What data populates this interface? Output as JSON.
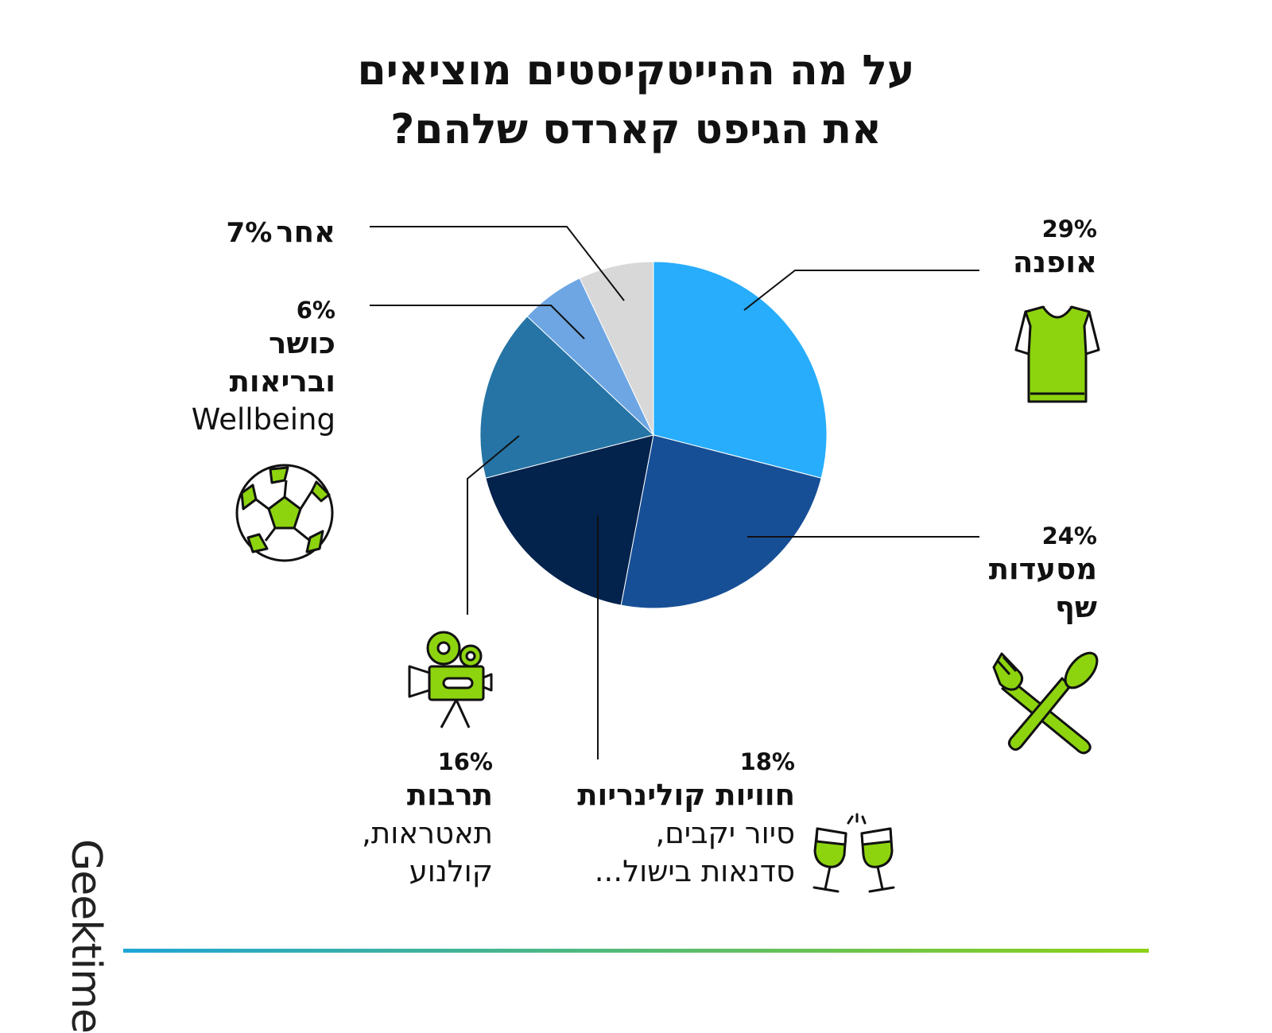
{
  "title_line1": "על מה ההייטקיסטים מוציאים",
  "title_line2": "את הגיפט קארדס שלהם?",
  "brand": "Geektime",
  "labels": {
    "fashion": {
      "pct": "29%",
      "name": "אופנה"
    },
    "restaurants": {
      "pct": "24%",
      "name1": "מסעדות",
      "name2": "שף"
    },
    "culinary": {
      "pct": "18%",
      "name": "חוויות קולינריות",
      "sub1": "סיור יקבים,",
      "sub2": "סדנאות בישול..."
    },
    "culture": {
      "pct": "16%",
      "name": "תרבות",
      "sub1": "תאטראות,",
      "sub2": "קולנוע"
    },
    "wellbeing": {
      "pct": "6%",
      "name1": "כושר",
      "name2": "ובריאות",
      "sub": "Wellbeing"
    },
    "other": {
      "pct": "7%",
      "name": "אחר"
    }
  },
  "icons": {
    "fashion": "t-shirt-icon",
    "restaurants": "fork-spoon-icon",
    "culinary": "wine-glasses-icon",
    "culture": "film-camera-icon",
    "wellbeing": "soccer-ball-icon"
  },
  "colors": {
    "fashion": "#27adfb",
    "restaurants": "#174f96",
    "culinary": "#03224c",
    "culture": "#2574a5",
    "wellbeing": "#6ea6e4",
    "other": "#d8d8d8",
    "icon_green": "#8dd40f"
  },
  "chart_data": {
    "type": "pie",
    "title": "על מה ההייטקיסטים מוציאים את הגיפט קארדס שלהם?",
    "categories": [
      "אופנה",
      "מסעדות שף",
      "חוויות קולינריות",
      "תרבות",
      "כושר ובריאות",
      "אחר"
    ],
    "values": [
      29,
      24,
      18,
      16,
      6,
      7
    ],
    "unit": "%",
    "start_angle_deg": 0,
    "direction": "clockwise"
  }
}
